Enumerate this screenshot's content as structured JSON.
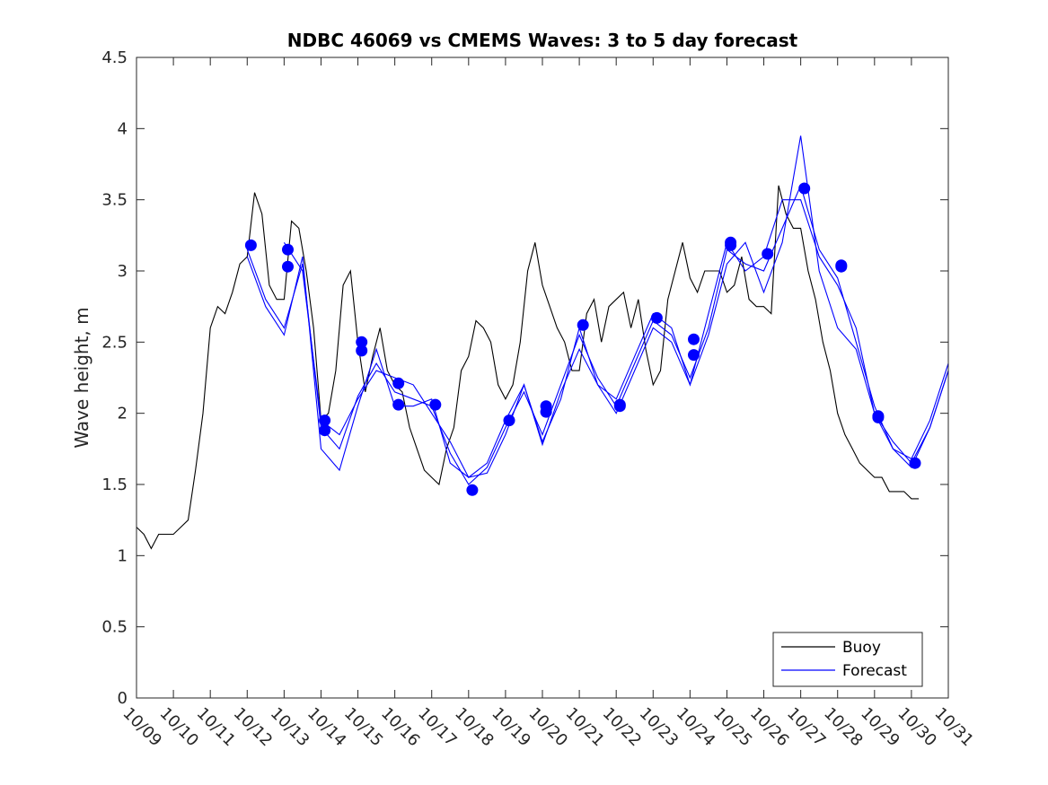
{
  "chart_data": {
    "type": "line",
    "title": "NDBC 46069 vs CMEMS Waves: 3 to 5 day forecast",
    "xlabel": "",
    "ylabel": "Wave height, m",
    "ylim": [
      0,
      4.5
    ],
    "xlim": [
      0,
      22
    ],
    "yticks": [
      0,
      0.5,
      1,
      1.5,
      2,
      2.5,
      3,
      3.5,
      4,
      4.5
    ],
    "ytick_labels": [
      "0",
      "0.5",
      "1",
      "1.5",
      "2",
      "2.5",
      "3",
      "3.5",
      "4",
      "4.5"
    ],
    "xticks": [
      0,
      1,
      2,
      3,
      4,
      5,
      6,
      7,
      8,
      9,
      10,
      11,
      12,
      13,
      14,
      15,
      16,
      17,
      18,
      19,
      20,
      21,
      22
    ],
    "xtick_labels": [
      "10/09",
      "10/10",
      "10/11",
      "10/12",
      "10/13",
      "10/14",
      "10/15",
      "10/16",
      "10/17",
      "10/18",
      "10/19",
      "10/20",
      "10/21",
      "10/22",
      "10/23",
      "10/24",
      "10/25",
      "10/26",
      "10/27",
      "10/28",
      "10/29",
      "10/30",
      "10/31"
    ],
    "legend": {
      "position": "bottom-right",
      "entries": [
        "Buoy",
        "Forecast"
      ]
    },
    "colors": {
      "buoy": "#000000",
      "forecast": "#0000ff",
      "markers": "#0000ff"
    },
    "series": [
      {
        "name": "Buoy",
        "x": [
          0,
          0.2,
          0.4,
          0.6,
          0.8,
          1.0,
          1.2,
          1.4,
          1.6,
          1.8,
          2.0,
          2.2,
          2.4,
          2.6,
          2.8,
          3.0,
          3.2,
          3.4,
          3.6,
          3.8,
          4.0,
          4.2,
          4.4,
          4.6,
          4.8,
          5.0,
          5.2,
          5.4,
          5.6,
          5.8,
          6.0,
          6.2,
          6.4,
          6.6,
          6.8,
          7.0,
          7.2,
          7.4,
          7.6,
          7.8,
          8.0,
          8.2,
          8.4,
          8.6,
          8.8,
          9.0,
          9.2,
          9.4,
          9.6,
          9.8,
          10.0,
          10.2,
          10.4,
          10.6,
          10.8,
          11.0,
          11.2,
          11.4,
          11.6,
          11.8,
          12.0,
          12.2,
          12.4,
          12.6,
          12.8,
          13.0,
          13.2,
          13.4,
          13.6,
          13.8,
          14.0,
          14.2,
          14.4,
          14.6,
          14.8,
          15.0,
          15.2,
          15.4,
          15.6,
          15.8,
          16.0,
          16.2,
          16.4,
          16.6,
          16.8,
          17.0,
          17.2,
          17.4,
          17.6,
          17.8,
          18.0,
          18.2,
          18.4,
          18.6,
          18.8,
          19.0,
          19.2,
          19.4,
          19.6,
          19.8,
          20.0,
          20.2,
          20.4,
          20.6,
          20.8,
          21.0,
          21.2
        ],
        "values": [
          1.2,
          1.15,
          1.05,
          1.15,
          1.15,
          1.15,
          1.2,
          1.25,
          1.6,
          2.0,
          2.6,
          2.75,
          2.7,
          2.85,
          3.05,
          3.1,
          3.55,
          3.4,
          2.9,
          2.8,
          2.8,
          3.35,
          3.3,
          3.0,
          2.6,
          1.95,
          2.0,
          2.3,
          2.9,
          3.0,
          2.5,
          2.15,
          2.4,
          2.6,
          2.3,
          2.2,
          2.15,
          1.9,
          1.75,
          1.6,
          1.55,
          1.5,
          1.75,
          1.9,
          2.3,
          2.4,
          2.65,
          2.6,
          2.5,
          2.2,
          2.1,
          2.2,
          2.5,
          3.0,
          3.2,
          2.9,
          2.75,
          2.6,
          2.5,
          2.3,
          2.3,
          2.7,
          2.8,
          2.5,
          2.75,
          2.8,
          2.85,
          2.6,
          2.8,
          2.45,
          2.2,
          2.3,
          2.8,
          3.0,
          3.2,
          2.95,
          2.85,
          3.0,
          3.0,
          3.0,
          2.85,
          2.9,
          3.1,
          2.8,
          2.75,
          2.75,
          2.7,
          3.6,
          3.4,
          3.3,
          3.3,
          3.0,
          2.8,
          2.5,
          2.3,
          2.0,
          1.85,
          1.75,
          1.65,
          1.6,
          1.55,
          1.55,
          1.45,
          1.45,
          1.45,
          1.4,
          1.4
        ]
      },
      {
        "name": "Forecast",
        "points": [
          [
            3.1,
            3.18
          ],
          [
            4.1,
            3.15
          ],
          [
            4.1,
            3.03
          ],
          [
            5.1,
            1.95
          ],
          [
            5.1,
            1.88
          ],
          [
            6.1,
            2.5
          ],
          [
            6.1,
            2.44
          ],
          [
            7.1,
            2.21
          ],
          [
            7.1,
            2.06
          ],
          [
            8.1,
            2.06
          ],
          [
            9.1,
            1.46
          ],
          [
            10.1,
            1.95
          ],
          [
            11.1,
            2.05
          ],
          [
            11.1,
            2.01
          ],
          [
            12.1,
            2.62
          ],
          [
            13.1,
            2.06
          ],
          [
            13.1,
            2.05
          ],
          [
            14.1,
            2.67
          ],
          [
            15.1,
            2.52
          ],
          [
            15.1,
            2.41
          ],
          [
            16.1,
            3.2
          ],
          [
            16.1,
            3.18
          ],
          [
            17.1,
            3.12
          ],
          [
            18.1,
            3.58
          ],
          [
            19.1,
            3.04
          ],
          [
            19.1,
            3.03
          ],
          [
            20.1,
            1.98
          ],
          [
            20.1,
            1.97
          ],
          [
            21.1,
            1.65
          ]
        ],
        "runs": [
          {
            "x": [
              3.0,
              3.5,
              4.0,
              4.5,
              5.0,
              5.5,
              6.0,
              6.5,
              7.0,
              7.5,
              8.0,
              8.5,
              9.0,
              9.5,
              10.0,
              10.5,
              11.0,
              11.5,
              12.0,
              12.5,
              13.0,
              13.5,
              14.0,
              14.5,
              15.0,
              15.5,
              16.0,
              16.5,
              17.0,
              17.5,
              18.0,
              18.5,
              19.0,
              19.5,
              20.0,
              20.5,
              21.0,
              21.5,
              22.0
            ],
            "values": [
              3.15,
              2.8,
              2.6,
              3.05,
              1.9,
              1.75,
              2.12,
              2.35,
              2.15,
              2.1,
              2.05,
              1.72,
              1.5,
              1.62,
              1.9,
              2.15,
              1.85,
              2.2,
              2.55,
              2.25,
              2.05,
              2.35,
              2.65,
              2.55,
              2.25,
              2.6,
              3.15,
              3.05,
              3.0,
              3.3,
              3.6,
              3.15,
              2.95,
              2.5,
              2.05,
              1.75,
              1.62,
              1.9,
              2.3
            ]
          },
          {
            "x": [
              3.0,
              3.5,
              4.0,
              4.5,
              5.0,
              5.5,
              6.0,
              6.5,
              7.0,
              7.5,
              8.0,
              8.5,
              9.0,
              9.5,
              10.0,
              10.5,
              11.0,
              11.5,
              12.0,
              12.5,
              13.0,
              13.5,
              14.0,
              14.5,
              15.0,
              15.5,
              16.0,
              16.5,
              17.0,
              17.5,
              18.0,
              18.5,
              19.0,
              19.5,
              20.0,
              20.5,
              21.0,
              21.5,
              22.0
            ],
            "values": [
              3.1,
              2.75,
              2.55,
              3.1,
              1.75,
              1.6,
              2.05,
              2.45,
              2.05,
              2.05,
              2.1,
              1.65,
              1.55,
              1.58,
              1.85,
              2.2,
              1.78,
              2.15,
              2.45,
              2.2,
              2.0,
              2.3,
              2.6,
              2.5,
              2.2,
              2.55,
              3.05,
              3.2,
              2.85,
              3.2,
              3.95,
              3.0,
              2.6,
              2.45,
              2.0,
              1.75,
              1.68,
              1.95,
              2.35
            ]
          },
          {
            "x": [
              4.0,
              4.5,
              5.0,
              5.5,
              6.0,
              6.5,
              7.0,
              7.5,
              8.0,
              8.5,
              9.0,
              9.5,
              10.0,
              10.5,
              11.0,
              11.5,
              12.0,
              12.5,
              13.0,
              13.5,
              14.0,
              14.5,
              15.0,
              15.5,
              16.0,
              16.5,
              17.0,
              17.5,
              18.0,
              18.5,
              19.0,
              19.5,
              20.0,
              20.5,
              21.0,
              21.5,
              22.0
            ],
            "values": [
              3.2,
              3.0,
              1.95,
              1.85,
              2.1,
              2.3,
              2.25,
              2.2,
              2.0,
              1.8,
              1.55,
              1.65,
              1.95,
              2.2,
              1.8,
              2.1,
              2.6,
              2.2,
              2.1,
              2.4,
              2.7,
              2.6,
              2.2,
              2.7,
              3.2,
              3.0,
              3.1,
              3.5,
              3.5,
              3.1,
              2.9,
              2.6,
              2.0,
              1.8,
              1.65,
              1.9,
              2.3
            ]
          }
        ]
      }
    ]
  }
}
